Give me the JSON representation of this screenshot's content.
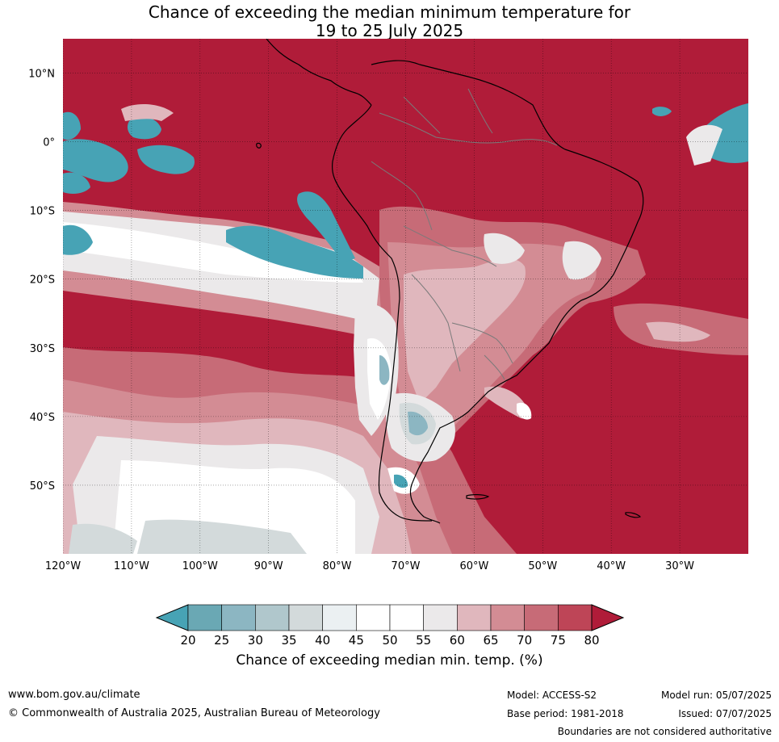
{
  "title": {
    "line1": "Chance of exceeding the median minimum temperature for",
    "line2": "19 to 25 July 2025"
  },
  "map": {
    "region": "South America",
    "lon_range": [
      -120,
      -20
    ],
    "lat_range": [
      -60,
      15
    ],
    "lon_ticks": [
      "120°W",
      "110°W",
      "100°W",
      "90°W",
      "80°W",
      "70°W",
      "60°W",
      "50°W",
      "40°W",
      "30°W"
    ],
    "lat_ticks": [
      "10°N",
      "0°",
      "10°S",
      "20°S",
      "30°S",
      "40°S",
      "50°S"
    ],
    "dominant_color": "#b01c39",
    "palette": {
      "p20": "#47a3b5",
      "p25": "#6aa8b4",
      "p30": "#8cb6c2",
      "p35": "#b0c7cc",
      "p40": "#d3dadb",
      "p45": "#ebf0f2",
      "p50": "#ffffff",
      "p55": "#ffffff",
      "p60": "#ebe9ea",
      "p65": "#e0b7bd",
      "p70": "#d38c94",
      "p75": "#c76b77",
      "p80": "#be4557",
      "p80plus": "#b01c39"
    }
  },
  "colorbar": {
    "ticks": [
      "20",
      "25",
      "30",
      "35",
      "40",
      "45",
      "50",
      "55",
      "60",
      "65",
      "70",
      "75",
      "80"
    ],
    "colors": [
      "#6aa8b4",
      "#8cb6c2",
      "#b0c7cc",
      "#d3dadb",
      "#ebf0f2",
      "#ffffff",
      "#ffffff",
      "#ebe9ea",
      "#e0b7bd",
      "#d38c94",
      "#c76b77",
      "#be4557"
    ],
    "under_color": "#47a3b5",
    "over_color": "#b01c39",
    "label": "Chance of exceeding median min. temp. (%)"
  },
  "footer": {
    "url": "www.bom.gov.au/climate",
    "copyright": "© Commonwealth of Australia 2025, Australian Bureau of Meteorology",
    "model": "Model: ACCESS-S2",
    "base_period": "Base period: 1981-2018",
    "model_run": "Model run: 05/07/2025",
    "issued": "Issued: 07/07/2025",
    "disclaimer": "Boundaries are not considered authoritative"
  }
}
